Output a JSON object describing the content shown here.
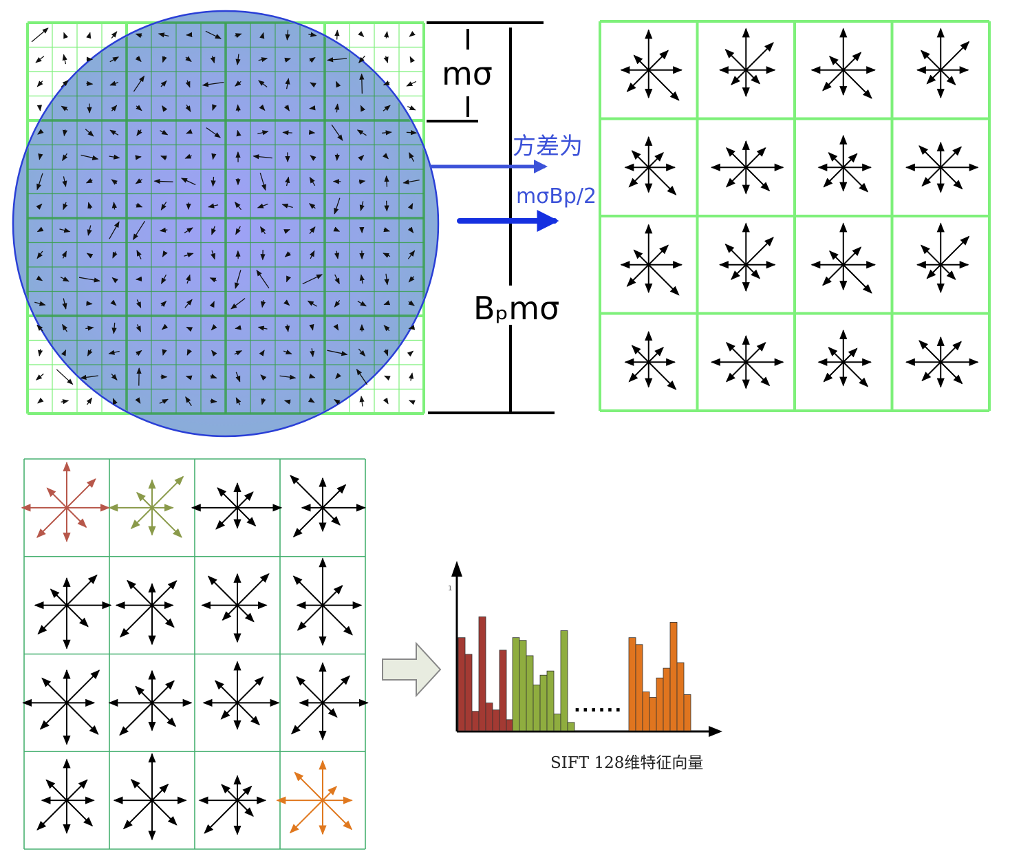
{
  "labels": {
    "m_sigma": "mσ",
    "variance_prefix": "方差为",
    "variance_value": "mσBp/2",
    "bp_m_sigma": "Bₚmσ",
    "ellipsis": "......",
    "y_tick": "1",
    "caption": "SIFT  128维特征向量"
  },
  "colors": {
    "grid_green": "#7ef07a",
    "grid_green_dark": "#3aa04a",
    "circle_fill": "#6f8fd8",
    "circle_center": "#8a8cf5",
    "circle_stroke": "#2a3fd6",
    "arrow_blue": "#3c52d8",
    "arrow_blue_bright": "#1530e0",
    "lower_grid": "#46b070",
    "red_bars": "#a33a33",
    "green_bars": "#8fad3f",
    "orange_bars": "#e0751f",
    "first_star": "#b7574a",
    "second_star": "#8a9a4a",
    "last_star": "#e0781e"
  },
  "chart_data": {
    "type": "bar",
    "title": "",
    "xlabel": "SIFT  128维特征向量",
    "ylabel": "",
    "ylim": [
      0,
      1
    ],
    "gap_label": "......",
    "series": [
      {
        "values": [
          0.67,
          0.55,
          0.14,
          0.82,
          0.2,
          0.15,
          0.58,
          0.08
        ]
      },
      {
        "values": [
          0.67,
          0.65,
          0.54,
          0.33,
          0.4,
          0.43,
          0.12,
          0.72,
          0.06
        ]
      },
      {
        "values": [
          0.67,
          0.62,
          0.28,
          0.24,
          0.38,
          0.45,
          0.78,
          0.49,
          0.26
        ]
      }
    ]
  }
}
